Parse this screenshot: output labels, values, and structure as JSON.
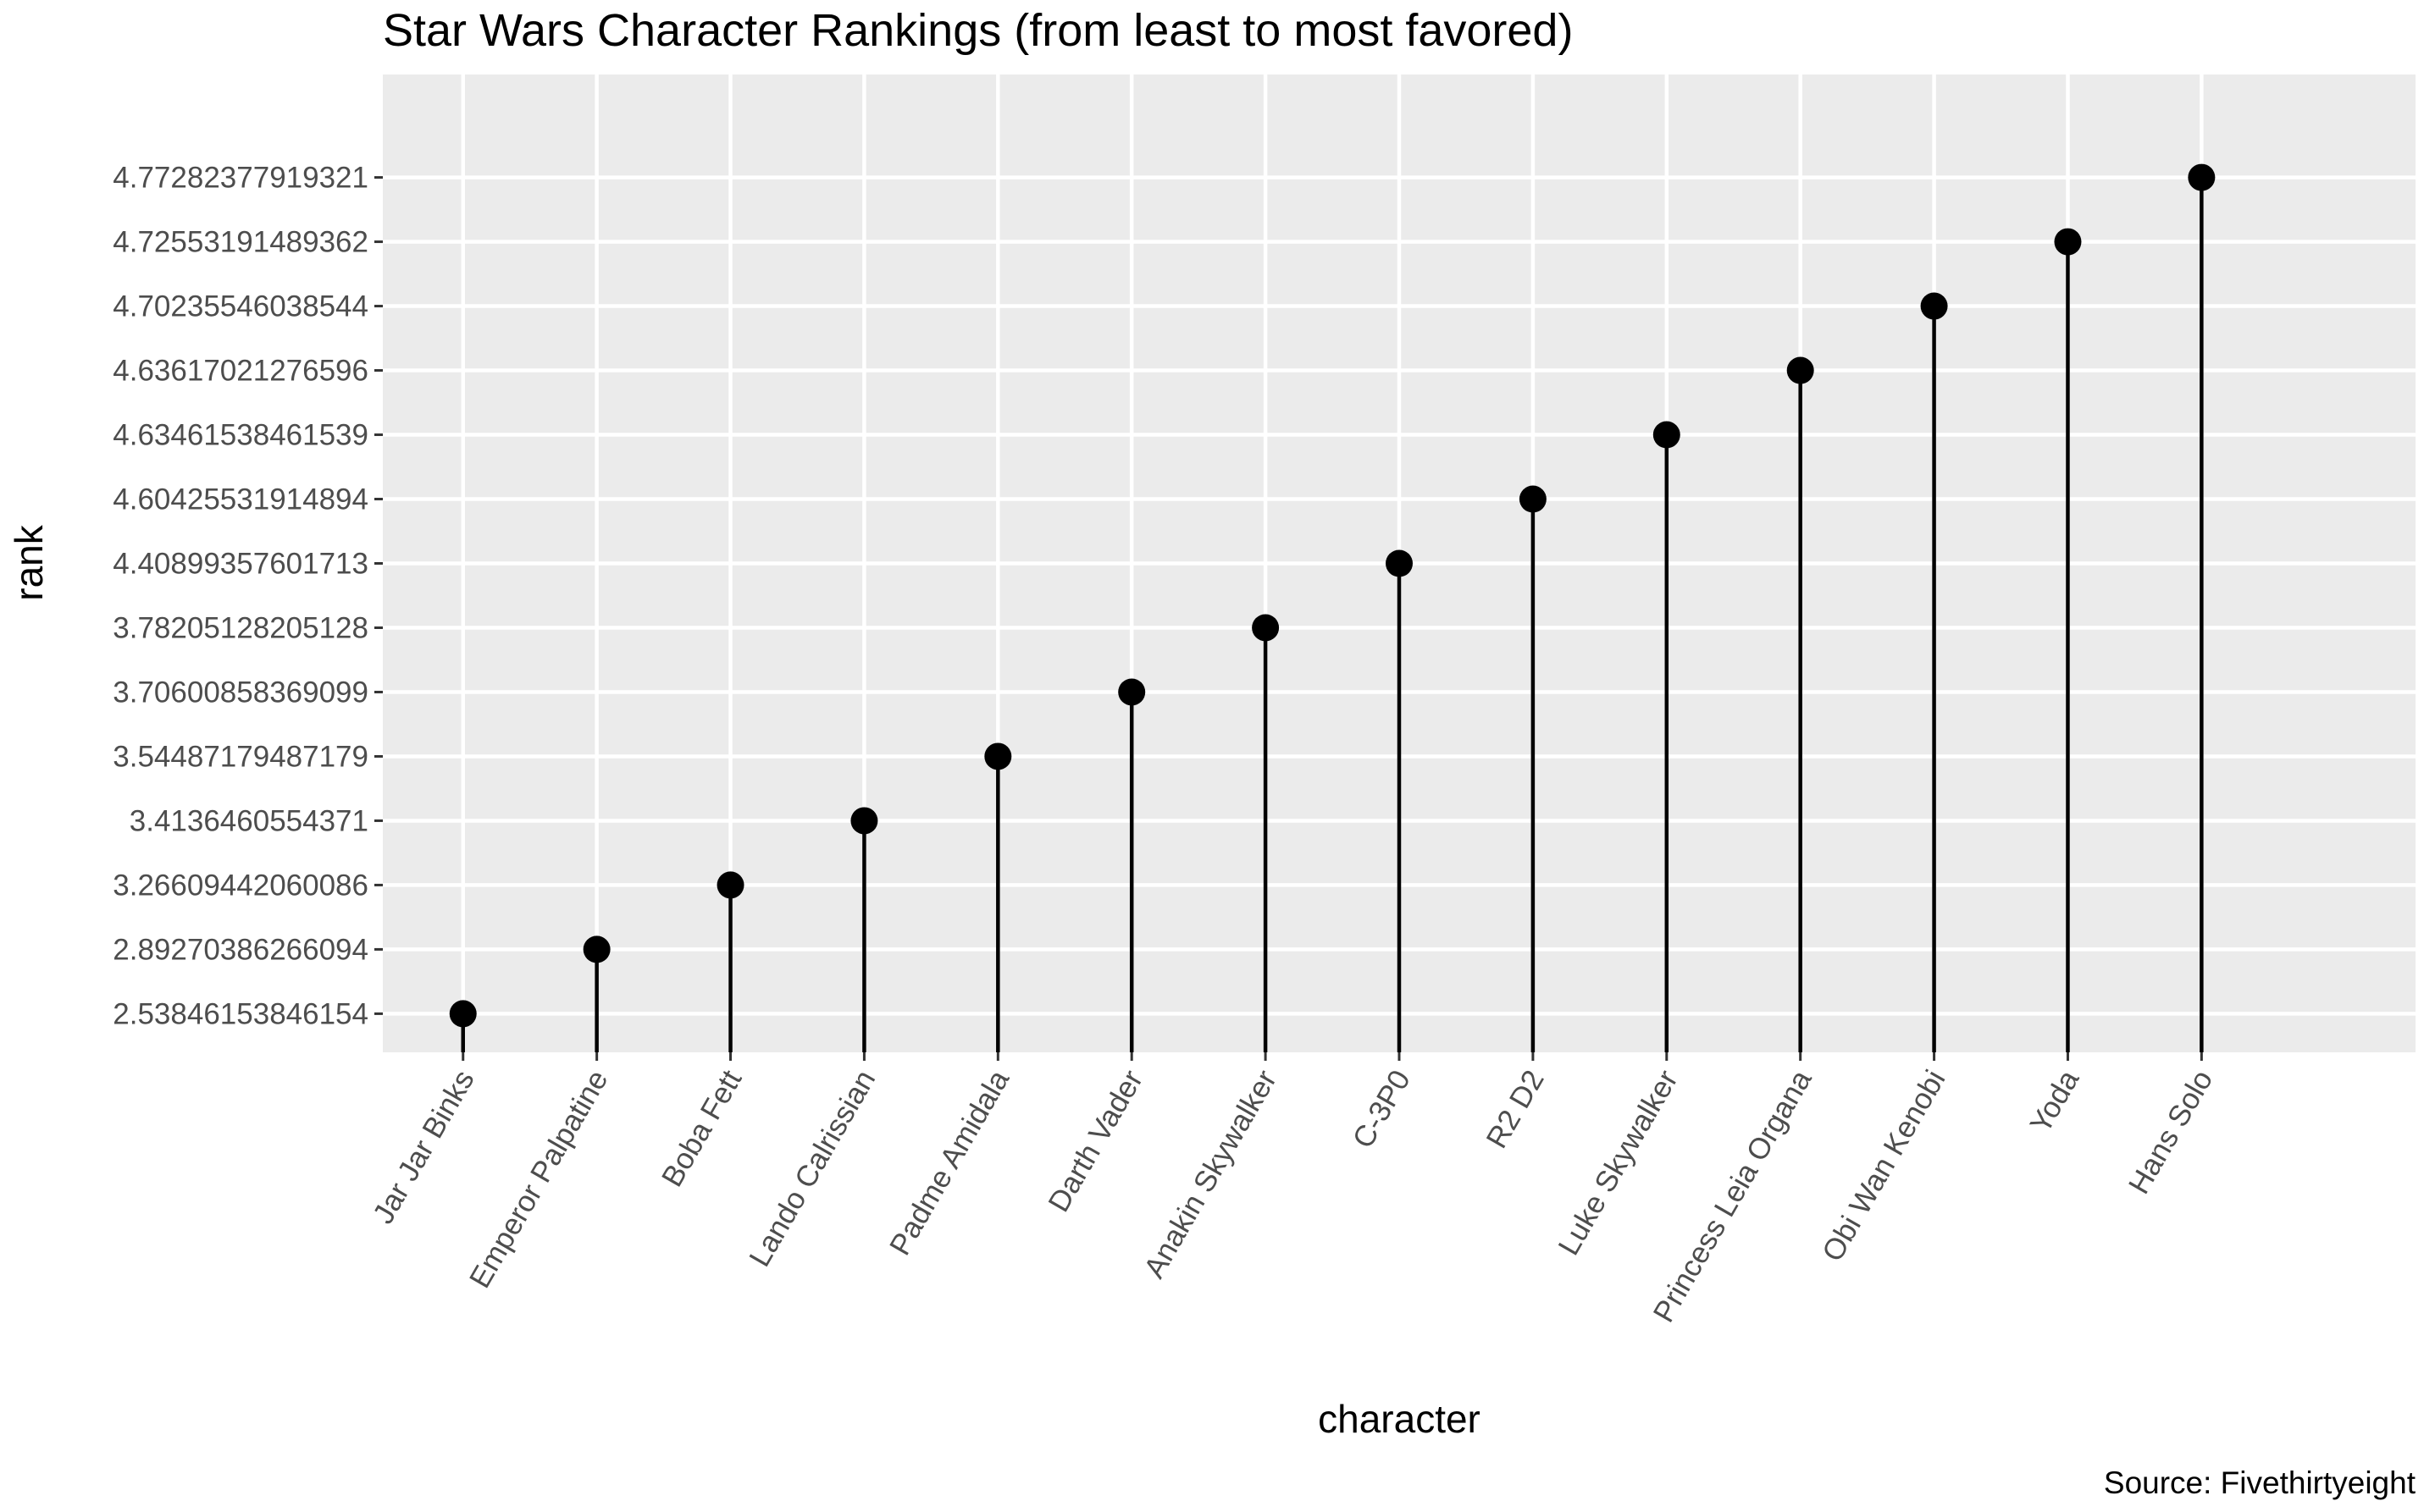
{
  "chart_data": {
    "type": "lollipop",
    "title": "Star Wars Character Rankings (from least to most favored)",
    "xlabel": "character",
    "ylabel": "rank",
    "caption": "Source: Fivethirtyeight",
    "y_scale": "discrete",
    "grid": true,
    "panel_background": "#ebebeb",
    "point_color": "#000000",
    "categories": [
      "Jar Jar Binks",
      "Emperor Palpatine",
      "Boba Fett",
      "Lando Calrissian",
      "Padme Amidala",
      "Darth Vader",
      "Anakin Skywalker",
      "C-3P0",
      "R2 D2",
      "Luke Skywalker",
      "Princess Leia Organa",
      "Obi Wan Kenobi",
      "Yoda",
      "Hans Solo"
    ],
    "values": [
      "2.53846153846154",
      "2.89270386266094",
      "3.26609442060086",
      "3.4136460554371",
      "3.54487179487179",
      "3.70600858369099",
      "3.78205128205128",
      "4.40899357601713",
      "4.60425531914894",
      "4.63461538461539",
      "4.63617021276596",
      "4.70235546038544",
      "4.72553191489362",
      "4.77282377919321"
    ]
  }
}
